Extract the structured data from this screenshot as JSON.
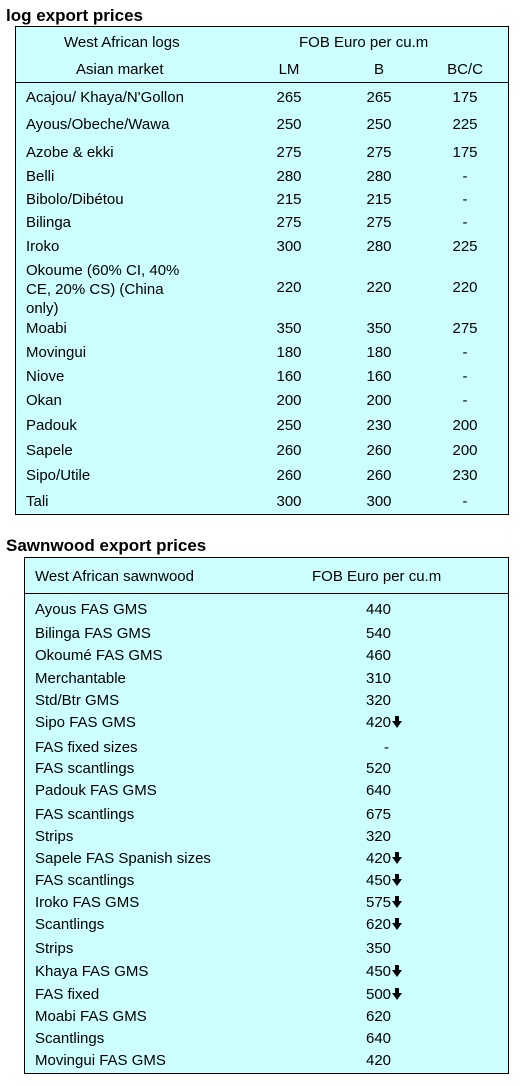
{
  "log_table": {
    "title": "log export prices",
    "header_left_1": "West African logs",
    "header_right_1": "FOB Euro per cu.m",
    "header_left_2": "Asian market",
    "columns": [
      "LM",
      "B",
      "BC/C"
    ],
    "rows": [
      {
        "name": "Acajou/ Khaya/N'Gollon",
        "lm": "265",
        "b": "265",
        "bcc": "175"
      },
      {
        "name": "Ayous/Obeche/Wawa",
        "lm": "250",
        "b": "250",
        "bcc": "225"
      },
      {
        "name": "Azobe & ekki",
        "lm": "275",
        "b": "275",
        "bcc": "175"
      },
      {
        "name": "Belli",
        "lm": "280",
        "b": "280",
        "bcc": "-"
      },
      {
        "name": "Bibolo/Dibétou",
        "lm": "215",
        "b": "215",
        "bcc": "-"
      },
      {
        "name": "Bilinga",
        "lm": "275",
        "b": "275",
        "bcc": "-"
      },
      {
        "name": "Iroko",
        "lm": "300",
        "b": "280",
        "bcc": "225"
      },
      {
        "name_lines": [
          "Okoume (60% CI, 40%",
          "CE, 20% CS) (China",
          "only)"
        ],
        "lm": "220",
        "b": "220",
        "bcc": "220"
      },
      {
        "name": "Moabi",
        "lm": "350",
        "b": "350",
        "bcc": "275"
      },
      {
        "name": "Movingui",
        "lm": "180",
        "b": "180",
        "bcc": "-"
      },
      {
        "name": "Niove",
        "lm": "160",
        "b": "160",
        "bcc": "-"
      },
      {
        "name": "Okan",
        "lm": "200",
        "b": "200",
        "bcc": "-"
      },
      {
        "name": "Padouk",
        "lm": "250",
        "b": "230",
        "bcc": "200"
      },
      {
        "name": "Sapele",
        "lm": "260",
        "b": "260",
        "bcc": "200"
      },
      {
        "name": "Sipo/Utile",
        "lm": "260",
        "b": "260",
        "bcc": "230"
      },
      {
        "name": "Tali",
        "lm": "300",
        "b": "300",
        "bcc": "-"
      }
    ]
  },
  "sawn_table": {
    "title": "Sawnwood export prices",
    "header_left": "West African sawnwood",
    "header_right": "FOB Euro per cu.m",
    "rows": [
      {
        "name": "Ayous FAS GMS",
        "price": "440",
        "trend": ""
      },
      {
        "name": "Bilinga FAS GMS",
        "price": "540",
        "trend": ""
      },
      {
        "name": "Okoumé FAS GMS",
        "price": "460",
        "trend": ""
      },
      {
        "name": "Merchantable",
        "price": "310",
        "trend": ""
      },
      {
        "name": "Std/Btr GMS",
        "price": "320",
        "trend": ""
      },
      {
        "name": "Sipo FAS GMS",
        "price": "420",
        "trend": "down"
      },
      {
        "name": "FAS fixed sizes",
        "price": "-",
        "trend": ""
      },
      {
        "name": "FAS scantlings",
        "price": "520",
        "trend": ""
      },
      {
        "name": "Padouk FAS GMS",
        "price": "640",
        "trend": ""
      },
      {
        "name": "FAS scantlings",
        "price": "675",
        "trend": ""
      },
      {
        "name": "Strips",
        "price": "320",
        "trend": ""
      },
      {
        "name": "Sapele FAS Spanish sizes",
        "price": "420",
        "trend": "down"
      },
      {
        "name": "FAS scantlings",
        "price": "450",
        "trend": "down"
      },
      {
        "name": "Iroko FAS GMS",
        "price": "575",
        "trend": "down"
      },
      {
        "name": "Scantlings",
        "price": "620",
        "trend": "down"
      },
      {
        "name": "Strips",
        "price": "350",
        "trend": ""
      },
      {
        "name": "Khaya FAS GMS",
        "price": "450",
        "trend": "down"
      },
      {
        "name": "FAS fixed",
        "price": "500",
        "trend": "down"
      },
      {
        "name": "Moabi FAS GMS",
        "price": "620",
        "trend": ""
      },
      {
        "name": "Scantlings",
        "price": "640",
        "trend": ""
      },
      {
        "name": "Movingui FAS GMS",
        "price": "420",
        "trend": ""
      }
    ]
  },
  "colors": {
    "panel_bg": "#ccffff",
    "border": "#000000"
  },
  "icons": {
    "trend_down": "down-arrow-icon"
  }
}
